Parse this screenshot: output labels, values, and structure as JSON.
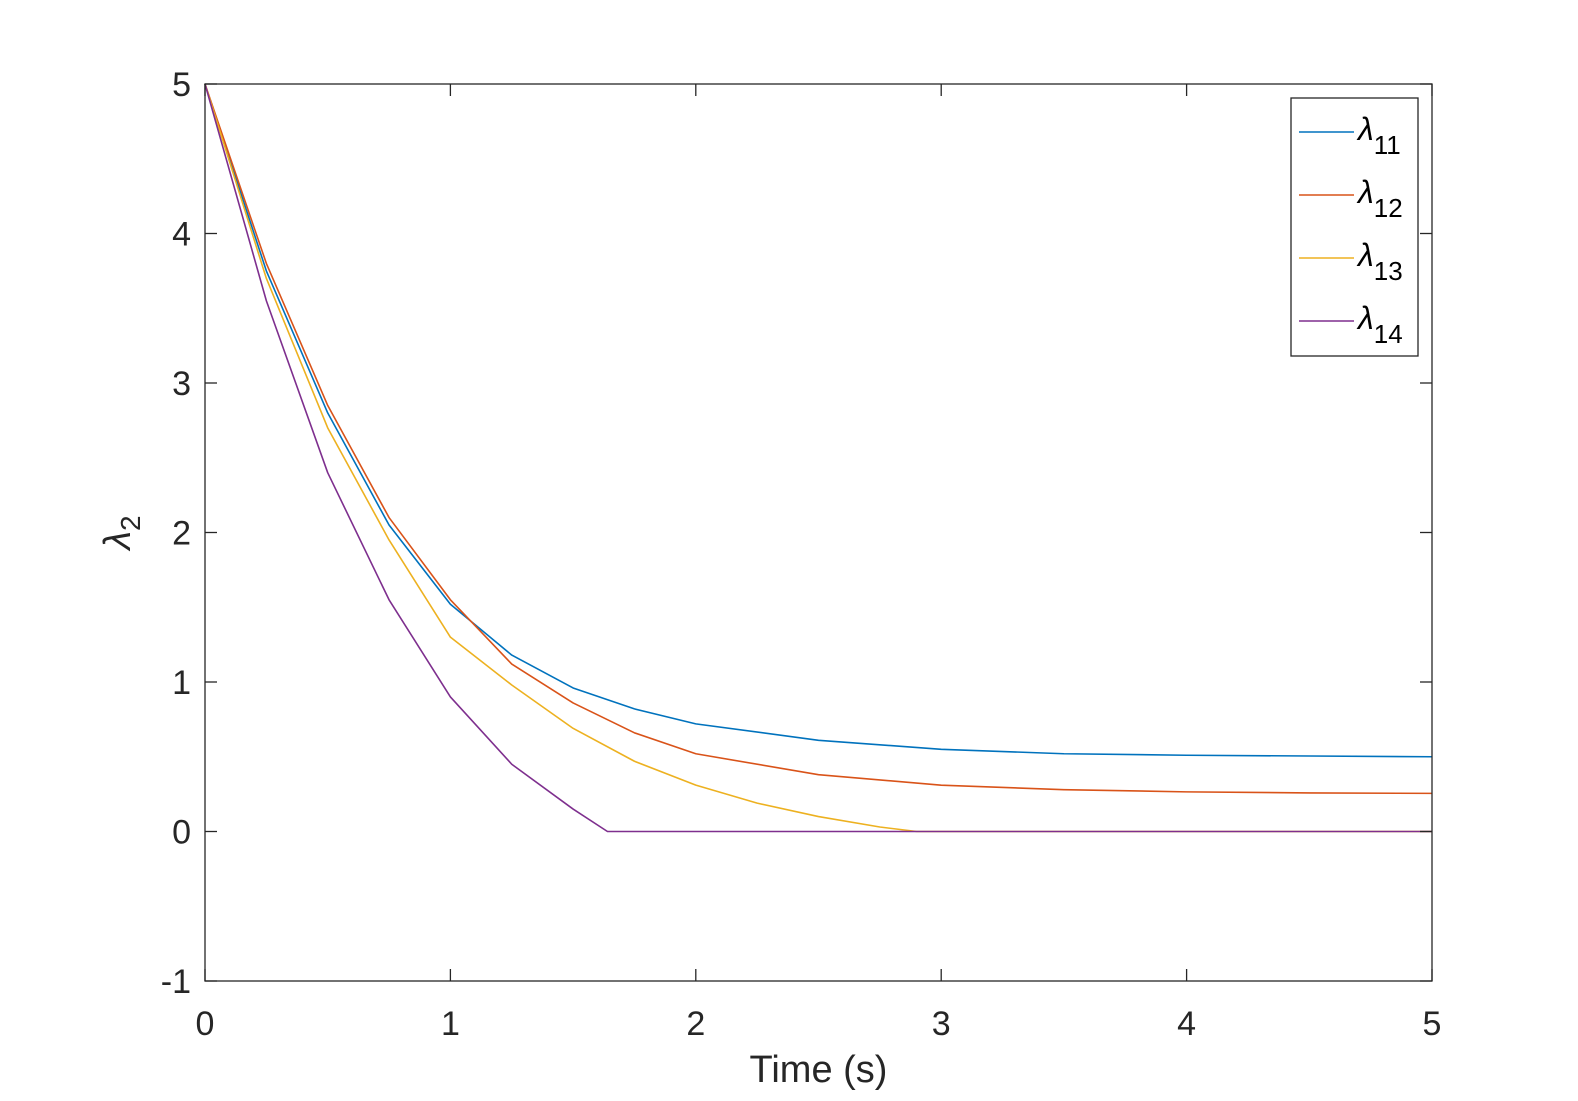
{
  "chart_data": {
    "type": "line",
    "title": "",
    "xlabel": "Time (s)",
    "ylabel": {
      "symbol": "λ",
      "subscript": "2"
    },
    "xlim": [
      0,
      5
    ],
    "ylim": [
      -1,
      5
    ],
    "x_ticks": [
      0,
      1,
      2,
      3,
      4,
      5
    ],
    "y_ticks": [
      -1,
      0,
      1,
      2,
      3,
      4,
      5
    ],
    "x_tick_labels": [
      "0",
      "1",
      "2",
      "3",
      "4",
      "5"
    ],
    "y_tick_labels": [
      "-1",
      "0",
      "1",
      "2",
      "3",
      "4",
      "5"
    ],
    "grid": false,
    "legend_position": "top-right",
    "series": [
      {
        "name": "λ11",
        "symbol": "λ",
        "subscript": "11",
        "color": "#0072BD",
        "x": [
          0,
          0.25,
          0.5,
          0.75,
          1.0,
          1.25,
          1.5,
          1.75,
          2.0,
          2.5,
          3.0,
          3.5,
          4.0,
          4.5,
          5.0
        ],
        "y": [
          5.0,
          3.75,
          2.8,
          2.05,
          1.52,
          1.18,
          0.96,
          0.82,
          0.72,
          0.61,
          0.55,
          0.52,
          0.51,
          0.505,
          0.5
        ]
      },
      {
        "name": "λ12",
        "symbol": "λ",
        "subscript": "12",
        "color": "#D95319",
        "x": [
          0,
          0.25,
          0.5,
          0.75,
          1.0,
          1.25,
          1.5,
          1.75,
          2.0,
          2.5,
          3.0,
          3.5,
          4.0,
          4.5,
          5.0
        ],
        "y": [
          5.0,
          3.8,
          2.85,
          2.1,
          1.55,
          1.12,
          0.86,
          0.66,
          0.52,
          0.38,
          0.31,
          0.28,
          0.265,
          0.258,
          0.255
        ]
      },
      {
        "name": "λ13",
        "symbol": "λ",
        "subscript": "13",
        "color": "#EDB120",
        "x": [
          0,
          0.25,
          0.5,
          0.75,
          1.0,
          1.25,
          1.5,
          1.75,
          2.0,
          2.25,
          2.5,
          2.75,
          2.9,
          3.5,
          4.0,
          5.0
        ],
        "y": [
          5.0,
          3.7,
          2.7,
          1.95,
          1.3,
          0.98,
          0.69,
          0.47,
          0.31,
          0.19,
          0.1,
          0.03,
          0.0,
          0.0,
          0.0,
          0.0
        ]
      },
      {
        "name": "λ14",
        "symbol": "λ",
        "subscript": "14",
        "color": "#7E2F8E",
        "x": [
          0,
          0.25,
          0.5,
          0.75,
          1.0,
          1.25,
          1.5,
          1.64,
          2.0,
          3.0,
          4.0,
          5.0
        ],
        "y": [
          5.0,
          3.55,
          2.4,
          1.55,
          0.9,
          0.45,
          0.15,
          0.0,
          0.0,
          0.0,
          0.0,
          0.0
        ]
      }
    ]
  }
}
